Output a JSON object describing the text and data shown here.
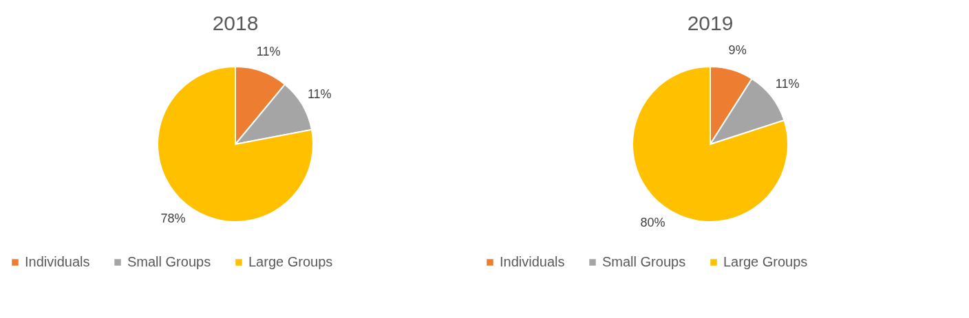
{
  "chart_data": [
    {
      "type": "pie",
      "title": "2018",
      "categories": [
        "Individuals",
        "Small Groups",
        "Large Groups"
      ],
      "values": [
        11,
        11,
        78
      ],
      "colors": [
        "#ed7d31",
        "#a5a5a5",
        "#ffc000"
      ],
      "value_labels": [
        "11%",
        "11%",
        "78%"
      ],
      "legend": "bottom"
    },
    {
      "type": "pie",
      "title": "2019",
      "categories": [
        "Individuals",
        "Small Groups",
        "Large Groups"
      ],
      "values": [
        9,
        11,
        80
      ],
      "colors": [
        "#ed7d31",
        "#a5a5a5",
        "#ffc000"
      ],
      "value_labels": [
        "9%",
        "11%",
        "80%"
      ],
      "legend": "bottom"
    }
  ]
}
